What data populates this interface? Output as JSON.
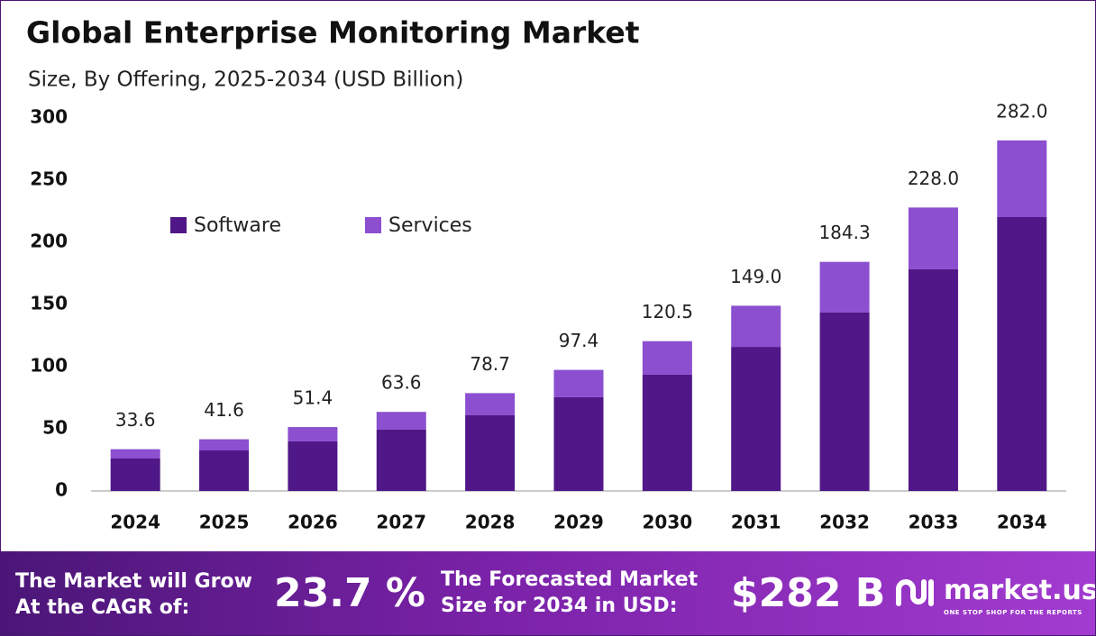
{
  "chart_data": {
    "type": "stacked_bar",
    "title": "Global Enterprise Monitoring Market",
    "subtitle": "Size, By Offering, 2025-2034 (USD Billion)",
    "categories": [
      "2024",
      "2025",
      "2026",
      "2027",
      "2028",
      "2029",
      "2030",
      "2031",
      "2032",
      "2033",
      "2034"
    ],
    "series": [
      {
        "name": "Software",
        "color": "#4f1787",
        "values": [
          26.1,
          32.6,
          39.9,
          49.3,
          60.9,
          75.4,
          93.5,
          115.9,
          143.5,
          178.3,
          220.3
        ]
      },
      {
        "name": "Services",
        "color": "#8b4fd0",
        "values": [
          7.5,
          9.0,
          11.5,
          14.3,
          17.8,
          22.0,
          27.0,
          33.1,
          40.8,
          49.7,
          61.7
        ]
      }
    ],
    "totals": [
      33.6,
      41.6,
      51.4,
      63.6,
      78.7,
      97.4,
      120.5,
      149.0,
      184.3,
      228.0,
      282.0
    ],
    "total_labels": [
      "33.6",
      "41.6",
      "51.4",
      "63.6",
      "78.7",
      "97.4",
      "120.5",
      "149.0",
      "184.3",
      "228.0",
      "282.0"
    ],
    "ylim": [
      0,
      300
    ],
    "yticks": [
      0,
      50,
      100,
      150,
      200,
      250,
      300
    ],
    "grid": false,
    "legend": "upper left"
  },
  "footer": {
    "cagr_text": [
      "The Market will Grow",
      "At the CAGR of:"
    ],
    "cagr_value": "23.7 %",
    "forecast_text": [
      "The Forecasted Market",
      "Size for 2034 in USD:"
    ],
    "forecast_value": "$282 B",
    "logo": "market.us",
    "tagline": "ONE STOP SHOP FOR THE REPORTS"
  }
}
